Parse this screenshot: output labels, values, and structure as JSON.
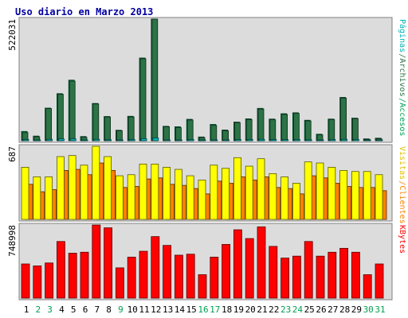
{
  "chart_data": {
    "type": "bar",
    "title": "Uso diario en Marzo 2013",
    "categories": [
      "1",
      "2",
      "3",
      "4",
      "5",
      "6",
      "7",
      "8",
      "9",
      "10",
      "11",
      "12",
      "13",
      "14",
      "15",
      "16",
      "17",
      "18",
      "19",
      "20",
      "21",
      "22",
      "23",
      "24",
      "25",
      "26",
      "27",
      "28",
      "29",
      "30",
      "31"
    ],
    "weekend_days": [
      "2",
      "3",
      "9",
      "16",
      "17",
      "23",
      "24",
      "30",
      "31"
    ],
    "panels": [
      {
        "id": "top",
        "max_label": "522031",
        "ylim": [
          0,
          522031
        ],
        "right_labels": [
          "Páginas",
          "Archivos",
          "Accesos"
        ],
        "series": [
          {
            "name": "Páginas",
            "color": "#00b4b4",
            "values": [
              5000,
              3000,
              6000,
              8000,
              8000,
              3000,
              6000,
              4000,
              3000,
              5000,
              9000,
              12000,
              3000,
              3000,
              5000,
              2000,
              3000,
              3000,
              5000,
              5000,
              6000,
              5000,
              5000,
              5000,
              4000,
              3000,
              5000,
              6000,
              5000,
              2000,
              2000
            ]
          },
          {
            "name": "Archivos",
            "color": "#2c7346",
            "values": [
              35000,
              17000,
              138000,
              199000,
              256000,
              15000,
              158000,
              102000,
              43000,
              102000,
              352000,
              522000,
              60000,
              56000,
              89000,
              14000,
              66000,
              43000,
              78000,
              91000,
              136000,
              90000,
              113000,
              117000,
              85000,
              25000,
              91000,
              183000,
              95000,
              6000,
              9000
            ]
          },
          {
            "name": "Accesos",
            "color": "#00a058",
            "values": [
              40000,
              20000,
              140000,
              202000,
              260000,
              18000,
              160000,
              104000,
              45000,
              105000,
              355000,
              522031,
              62000,
              60000,
              92000,
              16000,
              70000,
              46000,
              80000,
              94000,
              139000,
              93000,
              116000,
              120000,
              88000,
              28000,
              93000,
              186000,
              97000,
              8000,
              11000
            ]
          }
        ]
      },
      {
        "id": "middle",
        "max_label": "687",
        "ylim": [
          0,
          687
        ],
        "right_labels": [
          "Visitas",
          "Clientes"
        ],
        "series": [
          {
            "name": "Visitas",
            "color": "#ffff00",
            "values": [
              490,
              400,
              400,
              590,
              600,
              510,
              687,
              590,
              410,
              420,
              520,
              520,
              490,
              470,
              410,
              370,
              510,
              480,
              580,
              500,
              570,
              430,
              400,
              340,
              540,
              530,
              490,
              460,
              450,
              450,
              420
            ]
          },
          {
            "name": "Clientes",
            "color": "#ff8000",
            "values": [
              330,
              260,
              280,
              460,
              470,
              420,
              530,
              460,
              300,
              310,
              380,
              390,
              330,
              320,
              290,
              240,
              360,
              340,
              400,
              370,
              400,
              300,
              290,
              240,
              410,
              390,
              340,
              310,
              300,
              300,
              270
            ]
          }
        ]
      },
      {
        "id": "bottom",
        "max_label": "748998",
        "ylim": [
          0,
          748998
        ],
        "right_labels": [
          "KBytes"
        ],
        "series": [
          {
            "name": "KBytes",
            "color": "#ff0000",
            "values": [
              350000,
              330000,
              360000,
              580000,
              460000,
              470000,
              748998,
              720000,
              310000,
              420000,
              480000,
              630000,
              540000,
              440000,
              450000,
              240000,
              420000,
              550000,
              700000,
              610000,
              730000,
              530000,
              410000,
              430000,
              580000,
              430000,
              470000,
              510000,
              470000,
              240000,
              350000
            ]
          }
        ]
      }
    ]
  }
}
